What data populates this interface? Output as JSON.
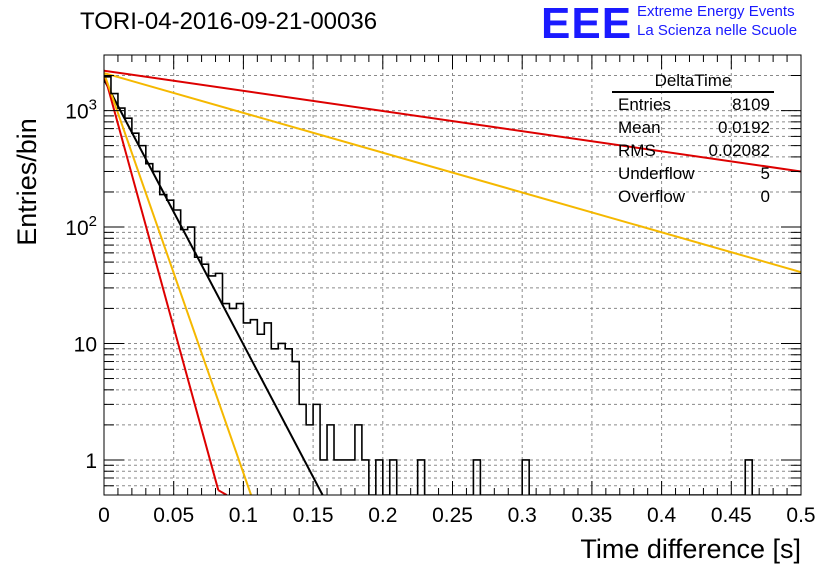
{
  "header": {
    "run_title": "TORI-04-2016-09-21-00036",
    "logo": "EEE",
    "org_line1": "Extreme Energy Events",
    "org_line2": "La Scienza nelle Scuole"
  },
  "stats_box": {
    "title": "DeltaTime",
    "rows": [
      {
        "label": "Entries",
        "value": "8109"
      },
      {
        "label": "Mean",
        "value": "0.0192"
      },
      {
        "label": "RMS",
        "value": "0.02082"
      },
      {
        "label": "Underflow",
        "value": "5"
      },
      {
        "label": "Overflow",
        "value": "0"
      }
    ]
  },
  "chart_data": {
    "type": "histogram",
    "xlabel": "Time difference [s]",
    "ylabel": "Entries/bin",
    "xlim": [
      0,
      0.5
    ],
    "ylim": [
      0.5,
      3000
    ],
    "log_y": true,
    "grid": true,
    "x_ticks": [
      "0",
      "0.05",
      "0.1",
      "0.15",
      "0.2",
      "0.25",
      "0.3",
      "0.35",
      "0.4",
      "0.45",
      "0.5"
    ],
    "y_ticks": [
      "1",
      "10",
      "10^2",
      "10^3"
    ],
    "bin_width": 0.005,
    "bins": [
      {
        "x": 0.0,
        "y": 1950
      },
      {
        "x": 0.005,
        "y": 1400
      },
      {
        "x": 0.01,
        "y": 1050
      },
      {
        "x": 0.015,
        "y": 860
      },
      {
        "x": 0.02,
        "y": 640
      },
      {
        "x": 0.025,
        "y": 500
      },
      {
        "x": 0.03,
        "y": 350
      },
      {
        "x": 0.035,
        "y": 300
      },
      {
        "x": 0.04,
        "y": 190
      },
      {
        "x": 0.045,
        "y": 170
      },
      {
        "x": 0.05,
        "y": 140
      },
      {
        "x": 0.055,
        "y": 95
      },
      {
        "x": 0.06,
        "y": 100
      },
      {
        "x": 0.065,
        "y": 55
      },
      {
        "x": 0.07,
        "y": 48
      },
      {
        "x": 0.075,
        "y": 38
      },
      {
        "x": 0.08,
        "y": 40
      },
      {
        "x": 0.085,
        "y": 22
      },
      {
        "x": 0.09,
        "y": 20
      },
      {
        "x": 0.095,
        "y": 22
      },
      {
        "x": 0.1,
        "y": 15
      },
      {
        "x": 0.105,
        "y": 16
      },
      {
        "x": 0.11,
        "y": 12
      },
      {
        "x": 0.115,
        "y": 15
      },
      {
        "x": 0.12,
        "y": 9
      },
      {
        "x": 0.125,
        "y": 10
      },
      {
        "x": 0.13,
        "y": 9
      },
      {
        "x": 0.135,
        "y": 7
      },
      {
        "x": 0.14,
        "y": 3
      },
      {
        "x": 0.145,
        "y": 2
      },
      {
        "x": 0.15,
        "y": 3
      },
      {
        "x": 0.155,
        "y": 1
      },
      {
        "x": 0.16,
        "y": 2
      },
      {
        "x": 0.165,
        "y": 1
      },
      {
        "x": 0.17,
        "y": 1
      },
      {
        "x": 0.175,
        "y": 1
      },
      {
        "x": 0.18,
        "y": 2
      },
      {
        "x": 0.185,
        "y": 1
      },
      {
        "x": 0.195,
        "y": 1
      },
      {
        "x": 0.205,
        "y": 1
      },
      {
        "x": 0.225,
        "y": 1
      },
      {
        "x": 0.265,
        "y": 1
      },
      {
        "x": 0.3,
        "y": 1
      },
      {
        "x": 0.46,
        "y": 1
      }
    ],
    "fits": [
      {
        "style": "black",
        "color": "#000000",
        "x": [
          0.0,
          0.1568
        ],
        "y": [
          1850,
          0.5
        ]
      },
      {
        "style": "red",
        "color": "#dd0000",
        "x": [
          0.0,
          0.5
        ],
        "y": [
          2200,
          300
        ]
      },
      {
        "style": "yellow",
        "color": "#f5b800",
        "x": [
          0.0,
          0.5
        ],
        "y": [
          2100,
          41
        ]
      },
      {
        "style": "red",
        "color": "#dd0000",
        "x": [
          0.0,
          0.082
        ],
        "y": [
          2100,
          0.55
        ]
      },
      {
        "style": "yellow",
        "color": "#f5b800",
        "x": [
          0.0,
          0.1055
        ],
        "y": [
          2100,
          0.5
        ]
      },
      {
        "style": "red",
        "color": "#dd0000",
        "x": [
          0.082,
          0.088
        ],
        "y": [
          0.55,
          0.5
        ]
      }
    ]
  }
}
